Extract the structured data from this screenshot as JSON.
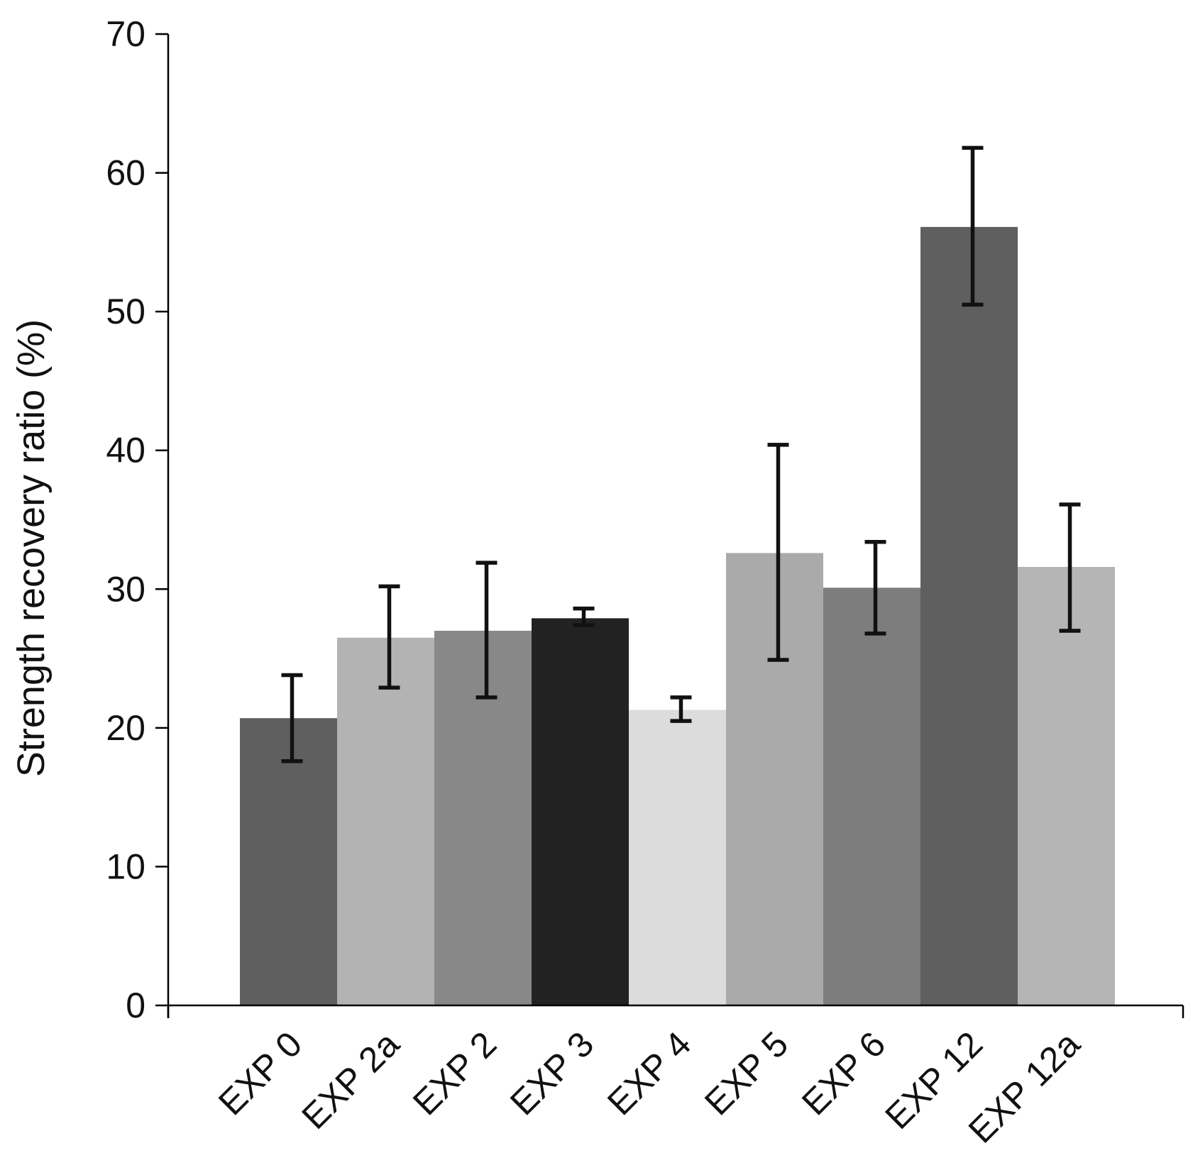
{
  "chart_data": {
    "type": "bar",
    "title": "",
    "xlabel": "",
    "ylabel": "Strength recovery ratio (%)",
    "ylim": [
      0,
      70
    ],
    "yticks": [
      0,
      10,
      20,
      30,
      40,
      50,
      60,
      70
    ],
    "grid": false,
    "legend": "none",
    "categories": [
      "EXP 0",
      "EXP 2a",
      "EXP 2",
      "EXP 3",
      "EXP 4",
      "EXP 5",
      "EXP 6",
      "EXP 12",
      "EXP 12a"
    ],
    "values": [
      20.7,
      26.5,
      27.0,
      27.9,
      21.3,
      32.6,
      30.1,
      56.1,
      31.6
    ],
    "error_low": [
      17.6,
      22.9,
      22.2,
      27.4,
      20.5,
      24.9,
      26.8,
      50.5,
      27.0
    ],
    "error_high": [
      23.8,
      30.2,
      31.9,
      28.6,
      22.2,
      40.4,
      33.4,
      61.8,
      36.1
    ],
    "colors": [
      "#5f5f5f",
      "#b3b3b3",
      "#888888",
      "#222222",
      "#dcdcdc",
      "#aaaaaa",
      "#7d7d7d",
      "#5f5f5f",
      "#b5b5b5"
    ]
  }
}
